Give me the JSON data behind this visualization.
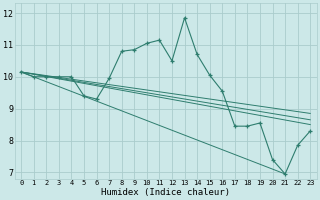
{
  "xlabel": "Humidex (Indice chaleur)",
  "xlim": [
    -0.5,
    23.5
  ],
  "ylim": [
    6.8,
    12.3
  ],
  "yticks": [
    7,
    8,
    9,
    10,
    11,
    12
  ],
  "xticks": [
    0,
    1,
    2,
    3,
    4,
    5,
    6,
    7,
    8,
    9,
    10,
    11,
    12,
    13,
    14,
    15,
    16,
    17,
    18,
    19,
    20,
    21,
    22,
    23
  ],
  "bg_color": "#cce8e8",
  "grid_color": "#aacccc",
  "line_color": "#2e7d6e",
  "main_line": [
    [
      0,
      10.15
    ],
    [
      1,
      10.0
    ],
    [
      2,
      10.0
    ],
    [
      3,
      10.0
    ],
    [
      4,
      10.0
    ],
    [
      5,
      9.4
    ],
    [
      6,
      9.3
    ],
    [
      7,
      9.95
    ],
    [
      8,
      10.8
    ],
    [
      9,
      10.85
    ],
    [
      10,
      11.05
    ],
    [
      11,
      11.15
    ],
    [
      12,
      10.5
    ],
    [
      13,
      11.85
    ],
    [
      14,
      10.7
    ],
    [
      15,
      10.05
    ],
    [
      16,
      9.55
    ],
    [
      17,
      8.45
    ],
    [
      18,
      8.45
    ],
    [
      19,
      8.55
    ],
    [
      20,
      7.4
    ],
    [
      21,
      6.95
    ],
    [
      22,
      7.85
    ],
    [
      23,
      8.3
    ]
  ],
  "extra_lines": [
    [
      [
        0,
        10.15
      ],
      [
        21,
        6.95
      ]
    ],
    [
      [
        0,
        10.15
      ],
      [
        23,
        8.5
      ]
    ],
    [
      [
        0,
        10.15
      ],
      [
        23,
        8.65
      ]
    ],
    [
      [
        0,
        10.15
      ],
      [
        23,
        8.85
      ]
    ]
  ]
}
